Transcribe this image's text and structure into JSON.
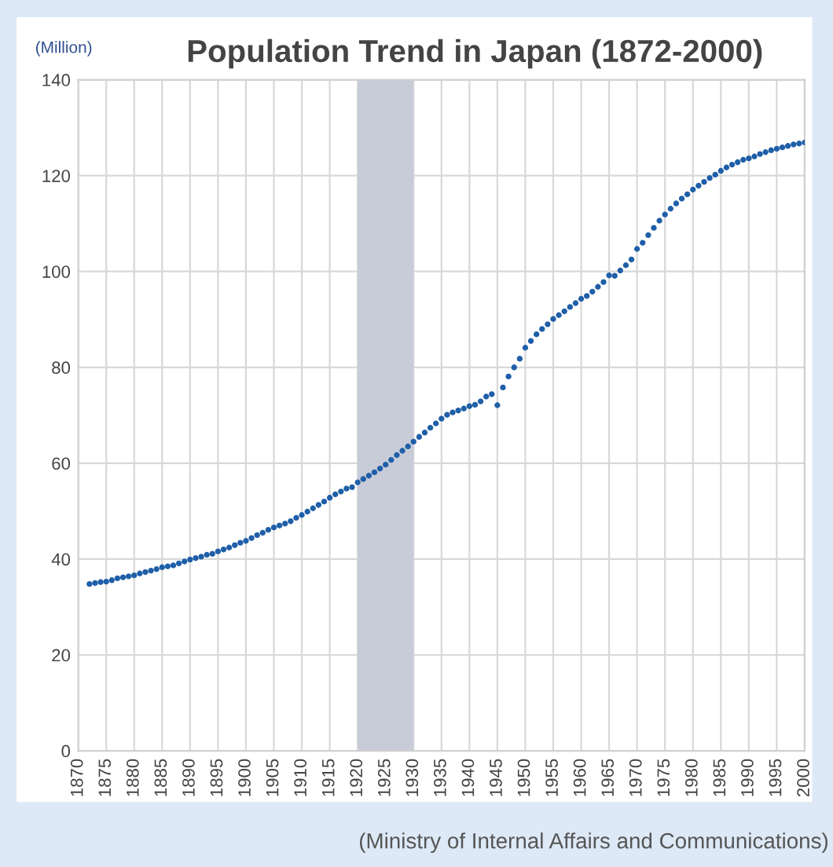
{
  "chart_data": {
    "type": "scatter",
    "title": "Population Trend in Japan (1872-2000)",
    "ylabel": "(Million)",
    "annotations": [
      "(Ministry of Internal Affairs and Communications)"
    ],
    "x": [
      1872,
      1873,
      1874,
      1875,
      1876,
      1877,
      1878,
      1879,
      1880,
      1881,
      1882,
      1883,
      1884,
      1885,
      1886,
      1887,
      1888,
      1889,
      1890,
      1891,
      1892,
      1893,
      1894,
      1895,
      1896,
      1897,
      1898,
      1899,
      1900,
      1901,
      1902,
      1903,
      1904,
      1905,
      1906,
      1907,
      1908,
      1909,
      1910,
      1911,
      1912,
      1913,
      1914,
      1915,
      1916,
      1917,
      1918,
      1919,
      1920,
      1921,
      1922,
      1923,
      1924,
      1925,
      1926,
      1927,
      1928,
      1929,
      1930,
      1931,
      1932,
      1933,
      1934,
      1935,
      1936,
      1937,
      1938,
      1939,
      1940,
      1941,
      1942,
      1943,
      1944,
      1945,
      1946,
      1947,
      1948,
      1949,
      1950,
      1951,
      1952,
      1953,
      1954,
      1955,
      1956,
      1957,
      1958,
      1959,
      1960,
      1961,
      1962,
      1963,
      1964,
      1965,
      1966,
      1967,
      1968,
      1969,
      1970,
      1971,
      1972,
      1973,
      1974,
      1975,
      1976,
      1977,
      1978,
      1979,
      1980,
      1981,
      1982,
      1983,
      1984,
      1985,
      1986,
      1987,
      1988,
      1989,
      1990,
      1991,
      1992,
      1993,
      1994,
      1995,
      1996,
      1997,
      1998,
      1999,
      2000
    ],
    "series": [
      {
        "color": "#1f5fa8",
        "values": [
          34.8,
          35.0,
          35.2,
          35.3,
          35.6,
          36.0,
          36.2,
          36.4,
          36.6,
          37.0,
          37.3,
          37.6,
          37.9,
          38.3,
          38.5,
          38.7,
          39.1,
          39.5,
          39.9,
          40.2,
          40.5,
          40.9,
          41.1,
          41.6,
          42.0,
          42.4,
          42.9,
          43.4,
          43.8,
          44.4,
          45.0,
          45.5,
          46.1,
          46.6,
          47.0,
          47.4,
          47.9,
          48.6,
          49.2,
          49.9,
          50.6,
          51.3,
          52.0,
          52.8,
          53.5,
          54.1,
          54.7,
          55.0,
          56.0,
          56.7,
          57.4,
          58.1,
          58.9,
          59.7,
          60.7,
          61.7,
          62.6,
          63.5,
          64.5,
          65.5,
          66.4,
          67.4,
          68.3,
          69.3,
          70.1,
          70.6,
          71.0,
          71.4,
          71.9,
          72.2,
          72.9,
          73.9,
          74.4,
          72.1,
          75.8,
          78.1,
          80.0,
          81.8,
          84.1,
          85.5,
          86.9,
          88.0,
          89.0,
          90.1,
          90.9,
          91.7,
          92.6,
          93.4,
          94.3,
          94.9,
          95.8,
          96.8,
          97.8,
          99.2,
          99.1,
          100.2,
          101.3,
          102.5,
          104.7,
          106.0,
          107.6,
          109.1,
          110.6,
          111.9,
          113.1,
          114.2,
          115.2,
          116.1,
          117.1,
          117.9,
          118.7,
          119.5,
          120.2,
          121.0,
          121.7,
          122.3,
          122.8,
          123.3,
          123.6,
          124.0,
          124.5,
          124.9,
          125.3,
          125.6,
          125.9,
          126.2,
          126.5,
          126.7,
          126.9
        ]
      }
    ],
    "xlim": [
      1870,
      2000
    ],
    "xticks": [
      1870,
      1875,
      1880,
      1885,
      1890,
      1895,
      1900,
      1905,
      1910,
      1915,
      1920,
      1925,
      1930,
      1935,
      1940,
      1945,
      1950,
      1955,
      1960,
      1965,
      1970,
      1975,
      1980,
      1985,
      1990,
      1995,
      2000
    ],
    "ylim": [
      0,
      140
    ],
    "yticks": [
      0,
      20,
      40,
      60,
      80,
      100,
      120,
      140
    ],
    "bands": [
      {
        "axis": "x",
        "from": 1920,
        "to": 1930,
        "color": "#c8ccd8"
      }
    ],
    "grid": true,
    "marker": "circle"
  }
}
